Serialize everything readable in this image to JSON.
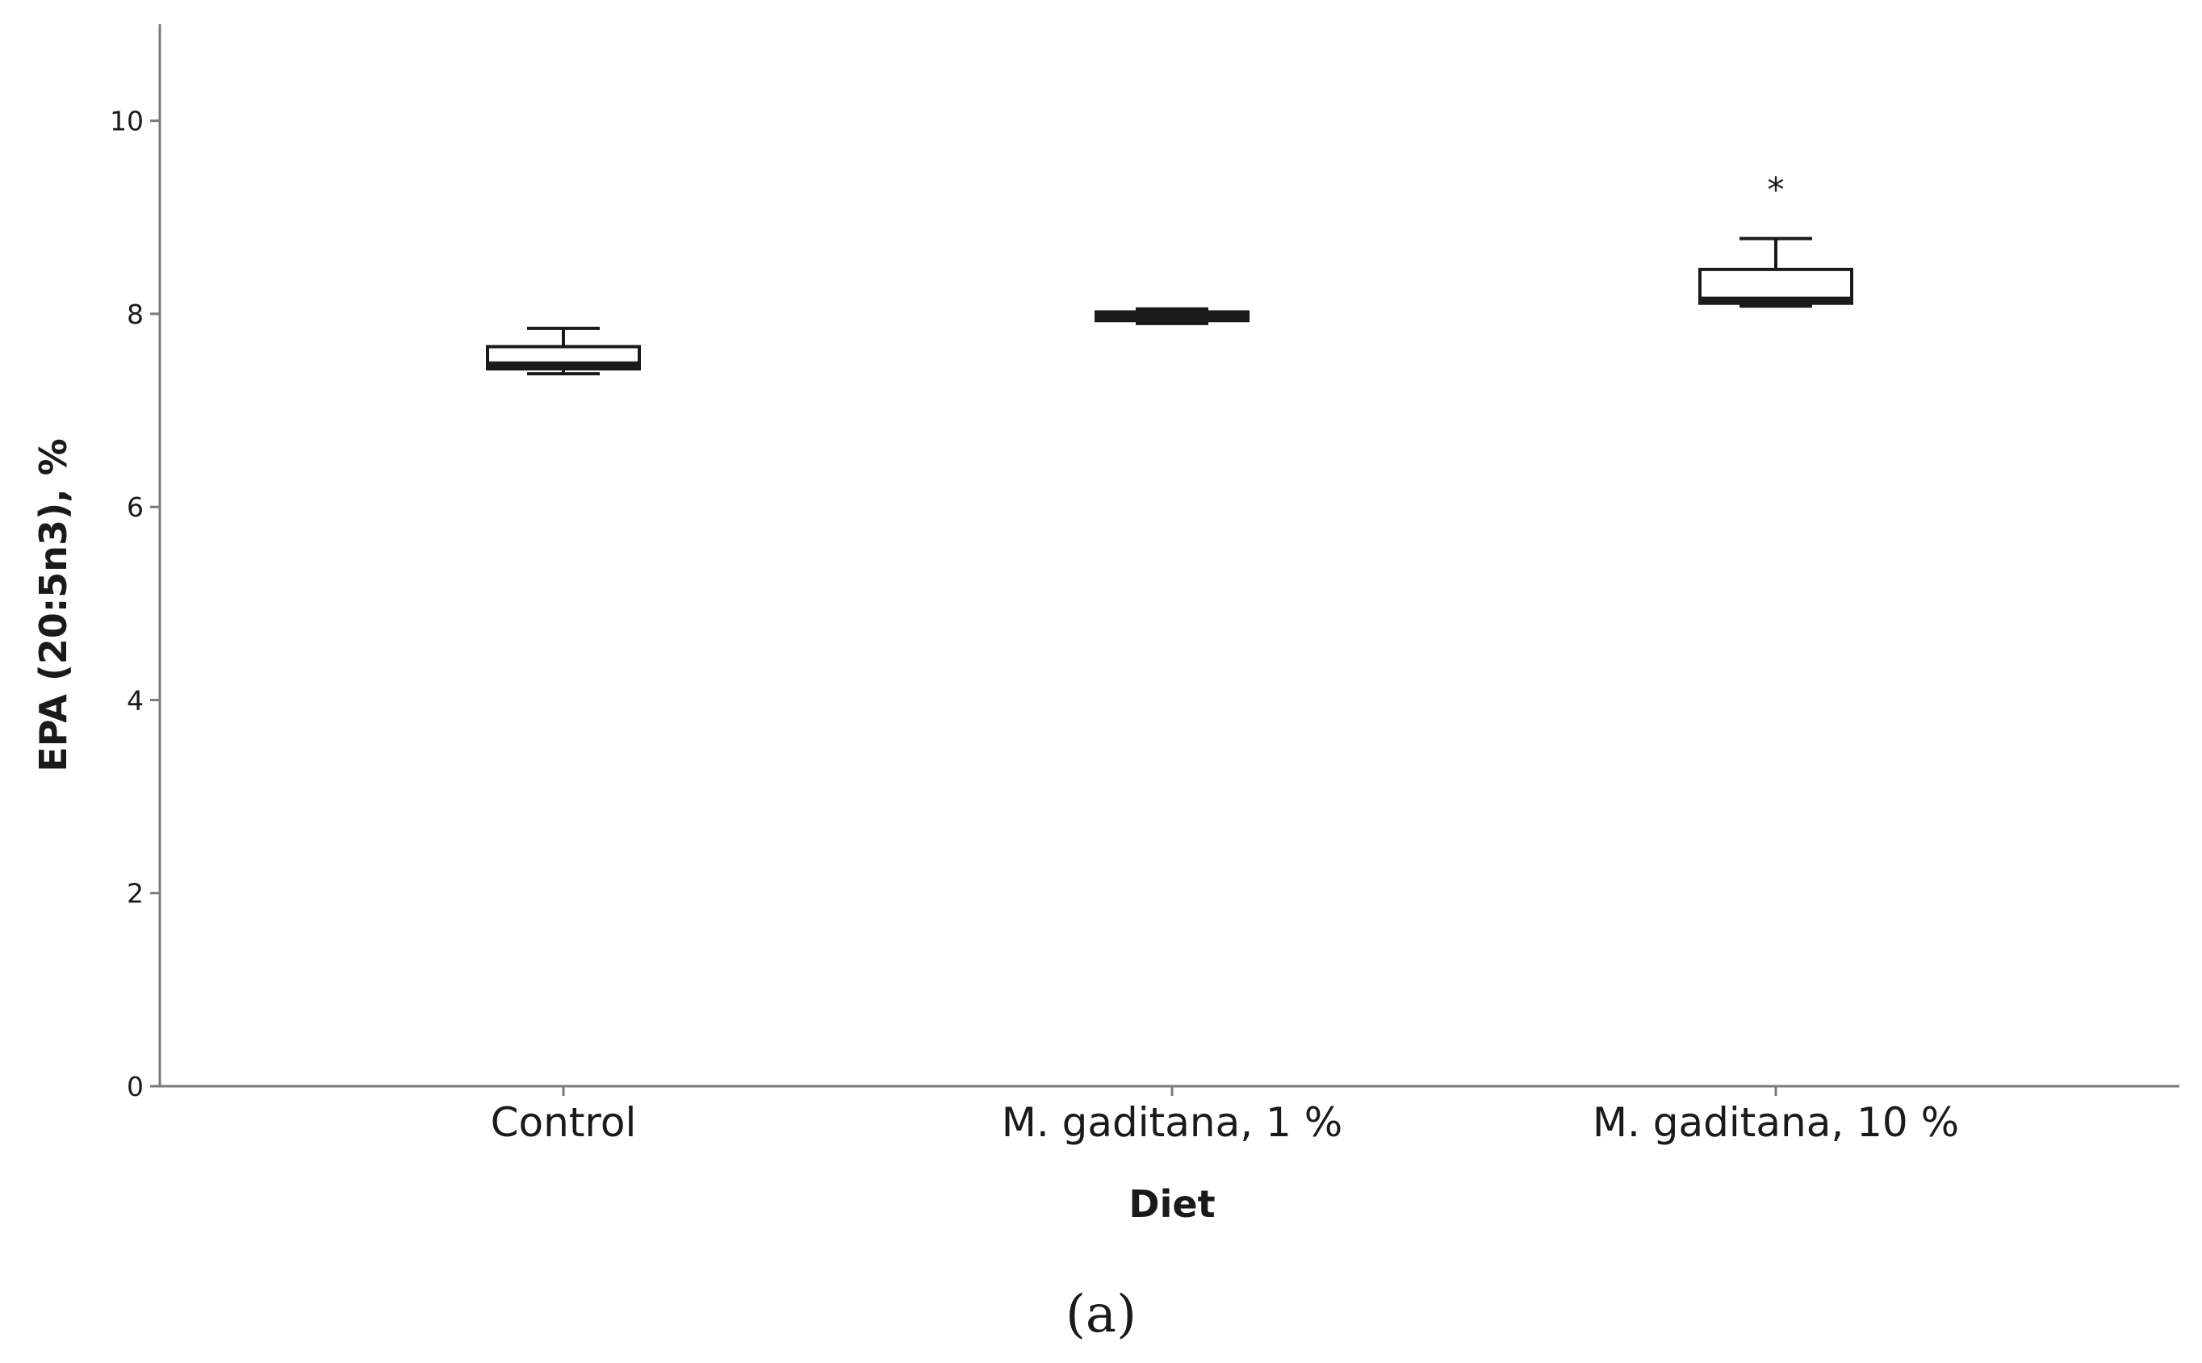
{
  "chart_data": {
    "type": "box",
    "title": "",
    "xlabel": "Diet",
    "ylabel": "EPA (20:5n3), %",
    "ylim": [
      0,
      11
    ],
    "yticks": [
      0,
      2,
      4,
      6,
      8,
      10
    ],
    "categories": [
      "Control",
      "M. gaditana, 1 %",
      "M. gaditana, 10 %"
    ],
    "boxes": [
      {
        "category": "Control",
        "whisker_low": 7.38,
        "q1": 7.43,
        "median": 7.47,
        "q3": 7.66,
        "whisker_high": 7.85,
        "outliers": []
      },
      {
        "category": "M. gaditana, 1 %",
        "whisker_low": 7.9,
        "q1": 7.93,
        "median": 7.97,
        "q3": 8.02,
        "whisker_high": 8.05,
        "outliers": []
      },
      {
        "category": "M. gaditana, 10 %",
        "whisker_low": 8.08,
        "q1": 8.11,
        "median": 8.14,
        "q3": 8.46,
        "whisker_high": 8.78,
        "outliers": [
          9.35
        ]
      }
    ],
    "outlier_marker": "*",
    "grid": false,
    "legend": "none"
  },
  "panel_label": "(a)"
}
